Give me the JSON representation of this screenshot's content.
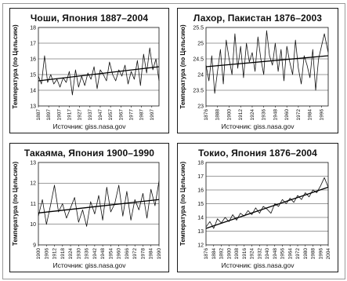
{
  "chart_data": [
    {
      "type": "line",
      "title": "Чоши, Япония 1887–2004",
      "ylabel": "Температура (по Цельсию)",
      "source": "Источник: giss.nasa.gov",
      "ylim": [
        13,
        18
      ],
      "yticks": [
        13,
        14,
        15,
        16,
        17,
        18
      ],
      "xlim": [
        1887,
        2004
      ],
      "xticks": [
        1887,
        1897,
        1907,
        1917,
        1927,
        1937,
        1947,
        1957,
        1967,
        1977,
        1987,
        1997
      ],
      "grid": true,
      "x": [
        1887,
        1890,
        1893,
        1896,
        1899,
        1902,
        1905,
        1908,
        1911,
        1914,
        1917,
        1920,
        1923,
        1926,
        1929,
        1932,
        1935,
        1938,
        1941,
        1944,
        1947,
        1950,
        1953,
        1956,
        1959,
        1962,
        1965,
        1968,
        1971,
        1974,
        1977,
        1980,
        1983,
        1986,
        1989,
        1992,
        1995,
        1998,
        2001,
        2004
      ],
      "values": [
        14.9,
        14.4,
        16.2,
        14.5,
        15.0,
        14.4,
        14.7,
        14.2,
        14.8,
        14.5,
        15.2,
        13.7,
        15.3,
        14.2,
        14.9,
        14.3,
        15.1,
        14.7,
        15.5,
        14.1,
        15.3,
        15.0,
        14.6,
        15.8,
        15.0,
        14.6,
        15.3,
        14.9,
        15.6,
        14.4,
        15.2,
        14.7,
        15.9,
        14.3,
        16.3,
        15.1,
        16.7,
        15.3,
        16.0,
        14.6
      ],
      "trend": {
        "x": [
          1887,
          2004
        ],
        "y": [
          14.6,
          15.5
        ]
      }
    },
    {
      "type": "line",
      "title": "Лахор, Пакистан 1876–2003",
      "ylabel": "Температура (по Цельсию)",
      "source": "Источник: giss.nasa.gov",
      "ylim": [
        23,
        25.5
      ],
      "yticks": [
        23,
        23.5,
        24,
        24.5,
        25,
        25.5
      ],
      "xlim": [
        1876,
        2003
      ],
      "xticks": [
        1876,
        1888,
        1900,
        1912,
        1924,
        1936,
        1948,
        1960,
        1972,
        1984,
        1996
      ],
      "grid": true,
      "x": [
        1876,
        1879,
        1882,
        1885,
        1888,
        1891,
        1894,
        1897,
        1900,
        1903,
        1906,
        1909,
        1912,
        1915,
        1918,
        1921,
        1924,
        1927,
        1930,
        1933,
        1936,
        1939,
        1942,
        1945,
        1948,
        1951,
        1954,
        1957,
        1960,
        1963,
        1966,
        1969,
        1972,
        1975,
        1978,
        1981,
        1984,
        1987,
        1990,
        1993,
        1996,
        1999,
        2003
      ],
      "values": [
        24.3,
        23.8,
        24.6,
        23.4,
        24.1,
        24.8,
        23.7,
        25.1,
        24.5,
        24.0,
        25.3,
        24.2,
        24.9,
        23.9,
        25.0,
        24.4,
        24.7,
        24.1,
        25.2,
        24.5,
        24.0,
        25.4,
        24.6,
        24.3,
        25.0,
        24.1,
        24.8,
        23.8,
        24.9,
        24.4,
        24.0,
        25.1,
        24.2,
        23.7,
        24.6,
        24.3,
        23.9,
        24.8,
        23.5,
        24.5,
        24.9,
        25.3,
        24.7
      ],
      "trend": {
        "x": [
          1876,
          2003
        ],
        "y": [
          24.25,
          24.6
        ]
      }
    },
    {
      "type": "line",
      "title": "Такаяма, Япония 1900–1990",
      "ylabel": "Температура (по Цельсию)",
      "source": "Источник: giss.nasa.gov",
      "ylim": [
        9,
        13
      ],
      "yticks": [
        9,
        10,
        11,
        12,
        13
      ],
      "xlim": [
        1900,
        1990
      ],
      "xticks": [
        1900,
        1906,
        1912,
        1918,
        1924,
        1930,
        1936,
        1942,
        1948,
        1954,
        1960,
        1966,
        1972,
        1978,
        1984,
        1990
      ],
      "grid": true,
      "x": [
        1900,
        1903,
        1906,
        1909,
        1912,
        1915,
        1918,
        1921,
        1924,
        1927,
        1930,
        1933,
        1936,
        1939,
        1942,
        1945,
        1948,
        1951,
        1954,
        1957,
        1960,
        1963,
        1966,
        1969,
        1972,
        1975,
        1978,
        1981,
        1984,
        1987,
        1990
      ],
      "values": [
        10.4,
        11.2,
        10.0,
        10.9,
        11.9,
        10.6,
        11.0,
        10.3,
        10.8,
        11.3,
        10.1,
        10.7,
        9.9,
        11.1,
        10.5,
        11.4,
        10.2,
        11.8,
        10.6,
        11.0,
        11.9,
        10.4,
        11.6,
        10.2,
        11.2,
        10.7,
        11.5,
        10.3,
        11.7,
        10.9,
        12.1
      ],
      "trend": {
        "x": [
          1900,
          1990
        ],
        "y": [
          10.55,
          11.2
        ]
      }
    },
    {
      "type": "line",
      "title": "Токио, Япония 1876–2004",
      "ylabel": "Температура (по Цельсию)",
      "source": "Источник: giss.nasa.gov",
      "ylim": [
        12,
        18
      ],
      "yticks": [
        12,
        13,
        14,
        15,
        16,
        17,
        18
      ],
      "xlim": [
        1876,
        2004
      ],
      "xticks": [
        1876,
        1884,
        1892,
        1900,
        1908,
        1916,
        1924,
        1932,
        1940,
        1948,
        1956,
        1964,
        1972,
        1980,
        1988,
        1996,
        2004
      ],
      "grid": true,
      "x": [
        1876,
        1880,
        1884,
        1888,
        1892,
        1896,
        1900,
        1904,
        1908,
        1912,
        1916,
        1920,
        1924,
        1928,
        1932,
        1936,
        1940,
        1944,
        1948,
        1952,
        1956,
        1960,
        1964,
        1968,
        1972,
        1976,
        1980,
        1984,
        1988,
        1992,
        1996,
        2000,
        2004
      ],
      "values": [
        13.3,
        13.7,
        13.2,
        13.9,
        13.6,
        14.0,
        13.7,
        14.2,
        13.8,
        14.3,
        14.1,
        14.5,
        14.2,
        14.7,
        14.3,
        14.8,
        14.6,
        14.3,
        15.0,
        14.8,
        15.3,
        15.0,
        15.4,
        15.1,
        15.6,
        15.3,
        15.8,
        15.5,
        16.0,
        15.8,
        16.3,
        16.9,
        16.2
      ],
      "trend": {
        "x": [
          1876,
          2004
        ],
        "y": [
          13.2,
          16.2
        ]
      }
    }
  ]
}
